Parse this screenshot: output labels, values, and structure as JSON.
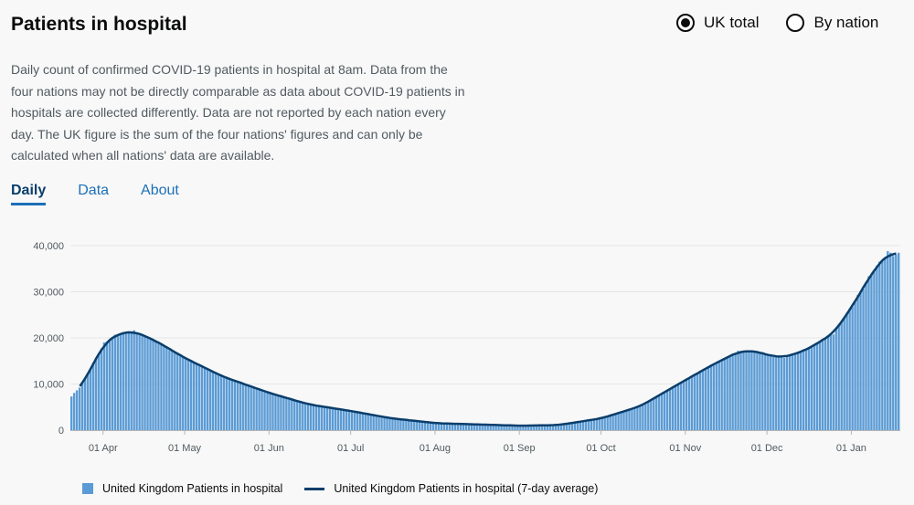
{
  "title": "Patients in hospital",
  "radios": [
    {
      "label": "UK total",
      "selected": true
    },
    {
      "label": "By nation",
      "selected": false
    }
  ],
  "description": "Daily count of confirmed COVID-19 patients in hospital at 8am. Data from the four nations may not be directly comparable as data about COVID-19 patients in hospitals are collected differently. Data are not reported by each nation every day. The UK figure is the sum of the four nations' figures and can only be calculated when all nations' data are available.",
  "tabs": [
    {
      "label": "Daily",
      "active": true
    },
    {
      "label": "Data",
      "active": false
    },
    {
      "label": "About",
      "active": false
    }
  ],
  "colors": {
    "bar": "#5b9bd5",
    "line": "#0b3e6b",
    "accent": "#1d70b8"
  },
  "chart_data": {
    "type": "bar",
    "x_range": [
      "2020-03-20",
      "2021-01-18"
    ],
    "ylim": [
      0,
      40000
    ],
    "y_ticks": [
      0,
      10000,
      20000,
      30000,
      40000
    ],
    "y_tick_labels": [
      "0",
      "10,000",
      "20,000",
      "30,000",
      "40,000"
    ],
    "x_ticks": [
      "01 Apr",
      "01 May",
      "01 Jun",
      "01 Jul",
      "01 Aug",
      "01 Sep",
      "01 Oct",
      "01 Nov",
      "01 Dec",
      "01 Jan"
    ],
    "grid": true,
    "legend_position": "bottom-left",
    "series": [
      {
        "name": "United Kingdom Patients in hospital",
        "kind": "bar",
        "keypoints": [
          [
            "2020-03-20",
            7300
          ],
          [
            "2020-03-24",
            10000
          ],
          [
            "2020-03-28",
            14500
          ],
          [
            "2020-04-01",
            18800
          ],
          [
            "2020-04-06",
            20900
          ],
          [
            "2020-04-12",
            21400
          ],
          [
            "2020-04-20",
            19300
          ],
          [
            "2020-05-01",
            15500
          ],
          [
            "2020-05-15",
            11500
          ],
          [
            "2020-06-01",
            8000
          ],
          [
            "2020-06-15",
            5600
          ],
          [
            "2020-07-01",
            4100
          ],
          [
            "2020-07-15",
            2600
          ],
          [
            "2020-08-01",
            1500
          ],
          [
            "2020-08-15",
            1250
          ],
          [
            "2020-09-01",
            950
          ],
          [
            "2020-09-15",
            1100
          ],
          [
            "2020-10-01",
            2600
          ],
          [
            "2020-10-15",
            5200
          ],
          [
            "2020-11-01",
            11000
          ],
          [
            "2020-11-10",
            14000
          ],
          [
            "2020-11-20",
            17000
          ],
          [
            "2020-11-26",
            17200
          ],
          [
            "2020-12-01",
            16200
          ],
          [
            "2020-12-07",
            15800
          ],
          [
            "2020-12-15",
            17400
          ],
          [
            "2020-12-25",
            21000
          ],
          [
            "2021-01-01",
            27000
          ],
          [
            "2021-01-08",
            34000
          ],
          [
            "2021-01-14",
            38400
          ],
          [
            "2021-01-18",
            38000
          ]
        ]
      },
      {
        "name": "United Kingdom Patients in hospital (7-day average)",
        "kind": "line",
        "start": "2020-03-23"
      }
    ]
  }
}
